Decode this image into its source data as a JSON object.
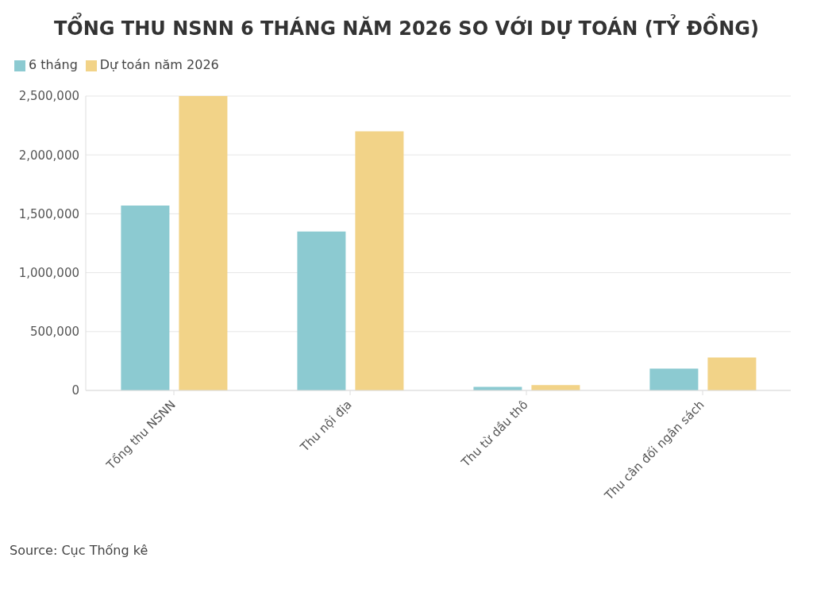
{
  "chart_data": {
    "type": "bar",
    "title": "TỔNG THU NSNN 6 THÁNG NĂM 2026 SO VỚI DỰ TOÁN (TỶ ĐỒNG)",
    "categories": [
      "Tổng thu NSNN",
      "Thu nội địa",
      "Thu từ dầu thô",
      "Thu cân đối ngân sách"
    ],
    "series": [
      {
        "name": "6 tháng",
        "color": "#8ccad1",
        "values": [
          1570000,
          1350000,
          30000,
          185000
        ]
      },
      {
        "name": "Dự toán năm 2026",
        "color": "#f2d388",
        "values": [
          2500000,
          2200000,
          45000,
          280000
        ]
      }
    ],
    "ylim": [
      0,
      2500000
    ],
    "yticks": [
      0,
      {
        "value": 500000,
        "label": "500,000"
      },
      {
        "value": 1000000,
        "label": "1,000,000"
      },
      {
        "value": 1500000,
        "label": "1,500,000"
      },
      {
        "value": 2000000,
        "label": "2,000,000"
      },
      {
        "value": 2500000,
        "label": "2,500,000"
      }
    ],
    "grid": "y",
    "legend": "top left",
    "annotations": [
      "Source: Cục Thống kê"
    ]
  }
}
